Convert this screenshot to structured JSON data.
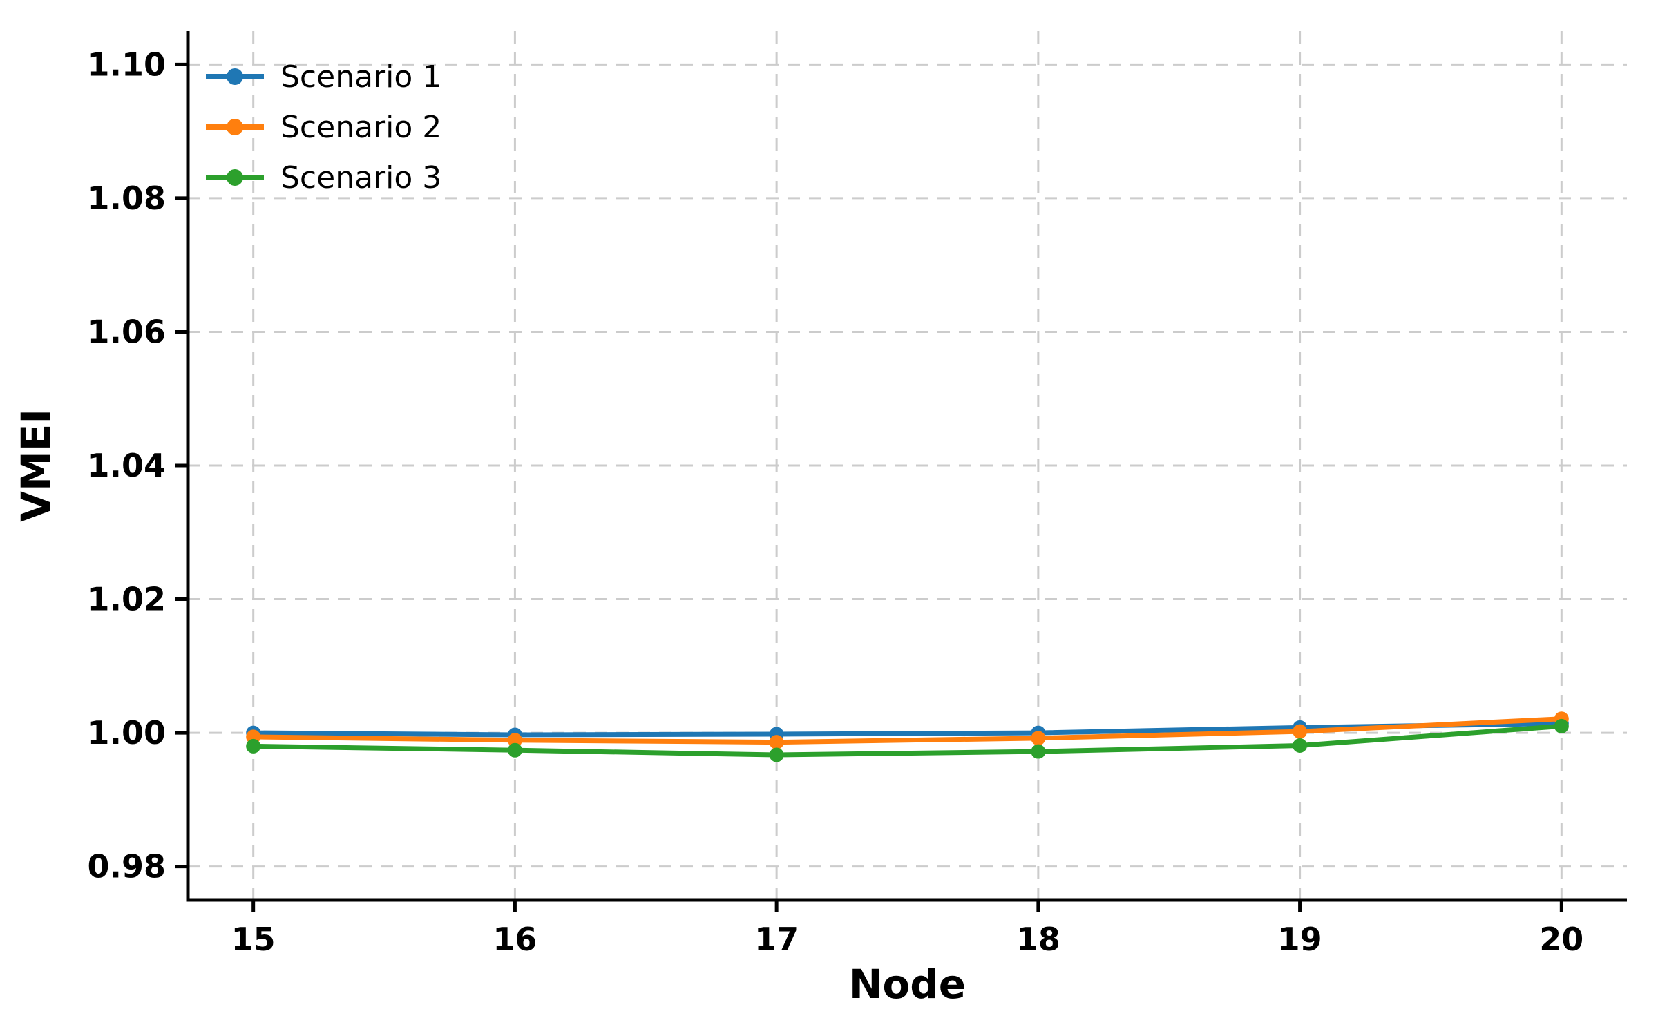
{
  "chart_data": {
    "type": "line",
    "title": "",
    "xlabel": "Node",
    "ylabel": "VMEI",
    "x": [
      15,
      16,
      17,
      18,
      19,
      20
    ],
    "xtick_labels": [
      "15",
      "16",
      "17",
      "18",
      "19",
      "20"
    ],
    "yticks": [
      0.98,
      1.0,
      1.02,
      1.04,
      1.06,
      1.08,
      1.1
    ],
    "ytick_labels": [
      "0.98",
      "1.00",
      "1.02",
      "1.04",
      "1.06",
      "1.08",
      "1.10"
    ],
    "xlim": [
      14.75,
      20.25
    ],
    "ylim": [
      0.975,
      1.105
    ],
    "grid": true,
    "grid_style": "dashed",
    "grid_color": "#cccccc",
    "axis_color": "#000000",
    "legend_position": "upper-left",
    "series": [
      {
        "name": "Scenario 1",
        "color": "#1f77b4",
        "values": [
          1.0,
          0.9997,
          0.9998,
          1.0,
          1.0008,
          1.0014
        ]
      },
      {
        "name": "Scenario 2",
        "color": "#ff7f0e",
        "values": [
          0.9994,
          0.9989,
          0.9986,
          0.9992,
          1.0002,
          1.0021
        ]
      },
      {
        "name": "Scenario 3",
        "color": "#2ca02c",
        "values": [
          0.998,
          0.9974,
          0.9967,
          0.9972,
          0.9981,
          1.001
        ]
      }
    ]
  }
}
